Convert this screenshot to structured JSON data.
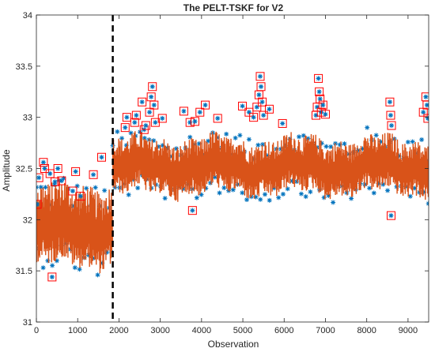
{
  "chart_data": {
    "type": "line",
    "title": "The PELT-TSKF for V2",
    "xlabel": "Observation",
    "ylabel": "Amplitude",
    "xlim": [
      0,
      9500
    ],
    "ylim": [
      31,
      34
    ],
    "xticks": [
      0,
      1000,
      2000,
      3000,
      4000,
      5000,
      6000,
      7000,
      8000,
      9000
    ],
    "yticks": [
      31,
      31.5,
      32,
      32.5,
      33,
      33.5,
      34
    ],
    "grid": false,
    "change_point": 1850,
    "colors": {
      "observations": "#0072BD",
      "estimate": "#D95319",
      "outlier_box": "#FF0000",
      "change_point_line": "#000000"
    },
    "series": [
      {
        "role": "observations",
        "marker": "asterisk",
        "segments": [
          {
            "x_range": [
              0,
              1850
            ],
            "mean": 31.9,
            "lower": 31.5,
            "upper": 32.4
          },
          {
            "x_range": [
              1850,
              9500
            ],
            "mean": 32.5,
            "lower": 32.2,
            "upper": 32.85
          }
        ]
      },
      {
        "role": "estimate",
        "segments": [
          {
            "x_range": [
              0,
              1850
            ],
            "mean": 31.9,
            "lower": 31.55,
            "upper": 32.35
          },
          {
            "x_range": [
              1850,
              9500
            ],
            "mean": 32.5,
            "lower": 32.25,
            "upper": 32.8
          }
        ]
      }
    ],
    "outliers": [
      {
        "x": 20,
        "y": 32.15
      },
      {
        "x": 60,
        "y": 32.41
      },
      {
        "x": 170,
        "y": 32.56
      },
      {
        "x": 200,
        "y": 32.5
      },
      {
        "x": 330,
        "y": 32.45
      },
      {
        "x": 380,
        "y": 31.44
      },
      {
        "x": 450,
        "y": 32.37
      },
      {
        "x": 520,
        "y": 32.5
      },
      {
        "x": 610,
        "y": 32.38
      },
      {
        "x": 880,
        "y": 32.28
      },
      {
        "x": 950,
        "y": 32.47
      },
      {
        "x": 1070,
        "y": 32.23
      },
      {
        "x": 1380,
        "y": 32.44
      },
      {
        "x": 1580,
        "y": 32.61
      },
      {
        "x": 2150,
        "y": 32.9
      },
      {
        "x": 2190,
        "y": 33.0
      },
      {
        "x": 2380,
        "y": 32.95
      },
      {
        "x": 2420,
        "y": 33.02
      },
      {
        "x": 2560,
        "y": 33.15
      },
      {
        "x": 2610,
        "y": 32.88
      },
      {
        "x": 2650,
        "y": 32.92
      },
      {
        "x": 2740,
        "y": 33.05
      },
      {
        "x": 2780,
        "y": 33.2
      },
      {
        "x": 2810,
        "y": 33.3
      },
      {
        "x": 2850,
        "y": 33.12
      },
      {
        "x": 2880,
        "y": 32.95
      },
      {
        "x": 3050,
        "y": 32.99
      },
      {
        "x": 3570,
        "y": 33.06
      },
      {
        "x": 3720,
        "y": 32.95
      },
      {
        "x": 3780,
        "y": 32.09
      },
      {
        "x": 3840,
        "y": 32.96
      },
      {
        "x": 3960,
        "y": 33.05
      },
      {
        "x": 4090,
        "y": 33.12
      },
      {
        "x": 4390,
        "y": 32.99
      },
      {
        "x": 4990,
        "y": 33.11
      },
      {
        "x": 5150,
        "y": 33.05
      },
      {
        "x": 5260,
        "y": 33.0
      },
      {
        "x": 5340,
        "y": 33.1
      },
      {
        "x": 5390,
        "y": 33.22
      },
      {
        "x": 5420,
        "y": 33.4
      },
      {
        "x": 5440,
        "y": 33.3
      },
      {
        "x": 5470,
        "y": 33.15
      },
      {
        "x": 5500,
        "y": 33.02
      },
      {
        "x": 5640,
        "y": 33.08
      },
      {
        "x": 5960,
        "y": 32.94
      },
      {
        "x": 6770,
        "y": 33.02
      },
      {
        "x": 6800,
        "y": 33.1
      },
      {
        "x": 6830,
        "y": 33.38
      },
      {
        "x": 6850,
        "y": 33.25
      },
      {
        "x": 6870,
        "y": 33.18
      },
      {
        "x": 6900,
        "y": 33.05
      },
      {
        "x": 6940,
        "y": 33.12
      },
      {
        "x": 7000,
        "y": 33.03
      },
      {
        "x": 8560,
        "y": 33.15
      },
      {
        "x": 8580,
        "y": 33.02
      },
      {
        "x": 8600,
        "y": 32.92
      },
      {
        "x": 8590,
        "y": 32.04
      },
      {
        "x": 9370,
        "y": 33.05
      },
      {
        "x": 9430,
        "y": 33.2
      },
      {
        "x": 9460,
        "y": 33.12
      },
      {
        "x": 9480,
        "y": 32.99
      }
    ]
  }
}
